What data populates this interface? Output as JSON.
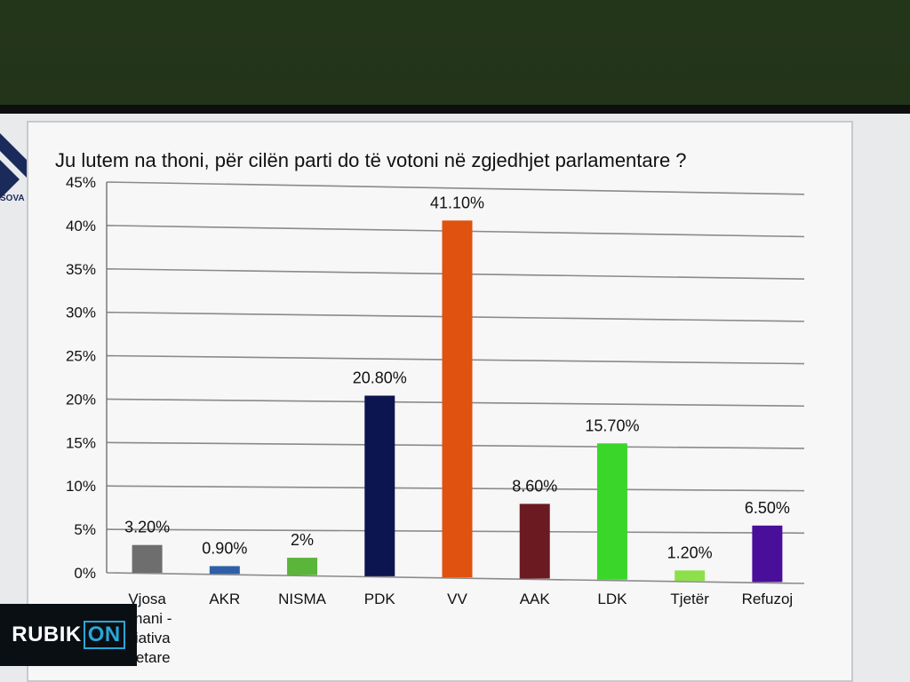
{
  "brand": {
    "side_logo_text": "SOVA",
    "overlay_logo_prefix": "RUBIK",
    "overlay_logo_suffix": "ON"
  },
  "chart_data": {
    "type": "bar",
    "title": "Ju lutem na thoni, për cilën parti do të votoni në zgjedhjet parlamentare ?",
    "categories": [
      "Vjosa\nsmani -\niciativa\nytetare",
      "AKR",
      "NISMA",
      "PDK",
      "VV",
      "AAK",
      "LDK",
      "Tjetër",
      "Refuzoj"
    ],
    "values": [
      3.2,
      0.9,
      2,
      20.8,
      41.1,
      8.6,
      15.7,
      1.2,
      6.5
    ],
    "value_labels": [
      "3.20%",
      "0.90%",
      "2%",
      "20.80%",
      "41.10%",
      "8.60%",
      "15.70%",
      "1.20%",
      "6.50%"
    ],
    "colors": [
      "#6e6e6e",
      "#2e5fa8",
      "#5bb53a",
      "#0d1550",
      "#e0520f",
      "#6b1a22",
      "#3bd62a",
      "#8ee04a",
      "#4a0f9a"
    ],
    "yticks": [
      "0%",
      "5%",
      "10%",
      "15%",
      "20%",
      "25%",
      "30%",
      "35%",
      "40%",
      "45%"
    ],
    "ylim": [
      0,
      45
    ],
    "grid": true,
    "legend": "none"
  }
}
